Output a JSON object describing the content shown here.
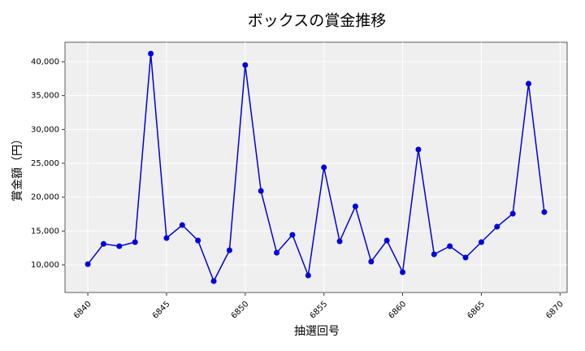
{
  "chart_data": {
    "type": "line",
    "title": "ボックスの賞金推移",
    "x_label": "抽選回号",
    "y_label": "賞金額（円）",
    "x": [
      6840,
      6841,
      6842,
      6843,
      6844,
      6845,
      6846,
      6847,
      6848,
      6849,
      6850,
      6851,
      6852,
      6853,
      6854,
      6855,
      6856,
      6857,
      6858,
      6859,
      6860,
      6861,
      6862,
      6863,
      6864,
      6865,
      6866,
      6867,
      6868,
      6869
    ],
    "series": [
      {
        "color": "#0000dd",
        "values": [
          10100,
          13100,
          12760,
          13360,
          41200,
          13960,
          15880,
          13600,
          7600,
          12160,
          39520,
          20920,
          11800,
          14440,
          8440,
          24400,
          13480,
          18640,
          10480,
          13600,
          8920,
          27040,
          11560,
          12760,
          11080,
          13360,
          15640,
          17560,
          36760,
          17800
        ]
      }
    ],
    "xlim": [
      6838.55,
      6870.45
    ],
    "xticks": [
      6840,
      6845,
      6850,
      6855,
      6860,
      6865,
      6870
    ],
    "ylim": [
      5920,
      42880
    ],
    "yticks": [
      {
        "value": 10000,
        "label": "10,000"
      },
      {
        "value": 15000,
        "label": "15,000"
      },
      {
        "value": 20000,
        "label": "20,000"
      },
      {
        "value": 25000,
        "label": "25,000"
      },
      {
        "value": 30000,
        "label": "30,000"
      },
      {
        "value": 35000,
        "label": "35,000"
      },
      {
        "value": 40000,
        "label": "40,000"
      }
    ],
    "grid": true
  }
}
